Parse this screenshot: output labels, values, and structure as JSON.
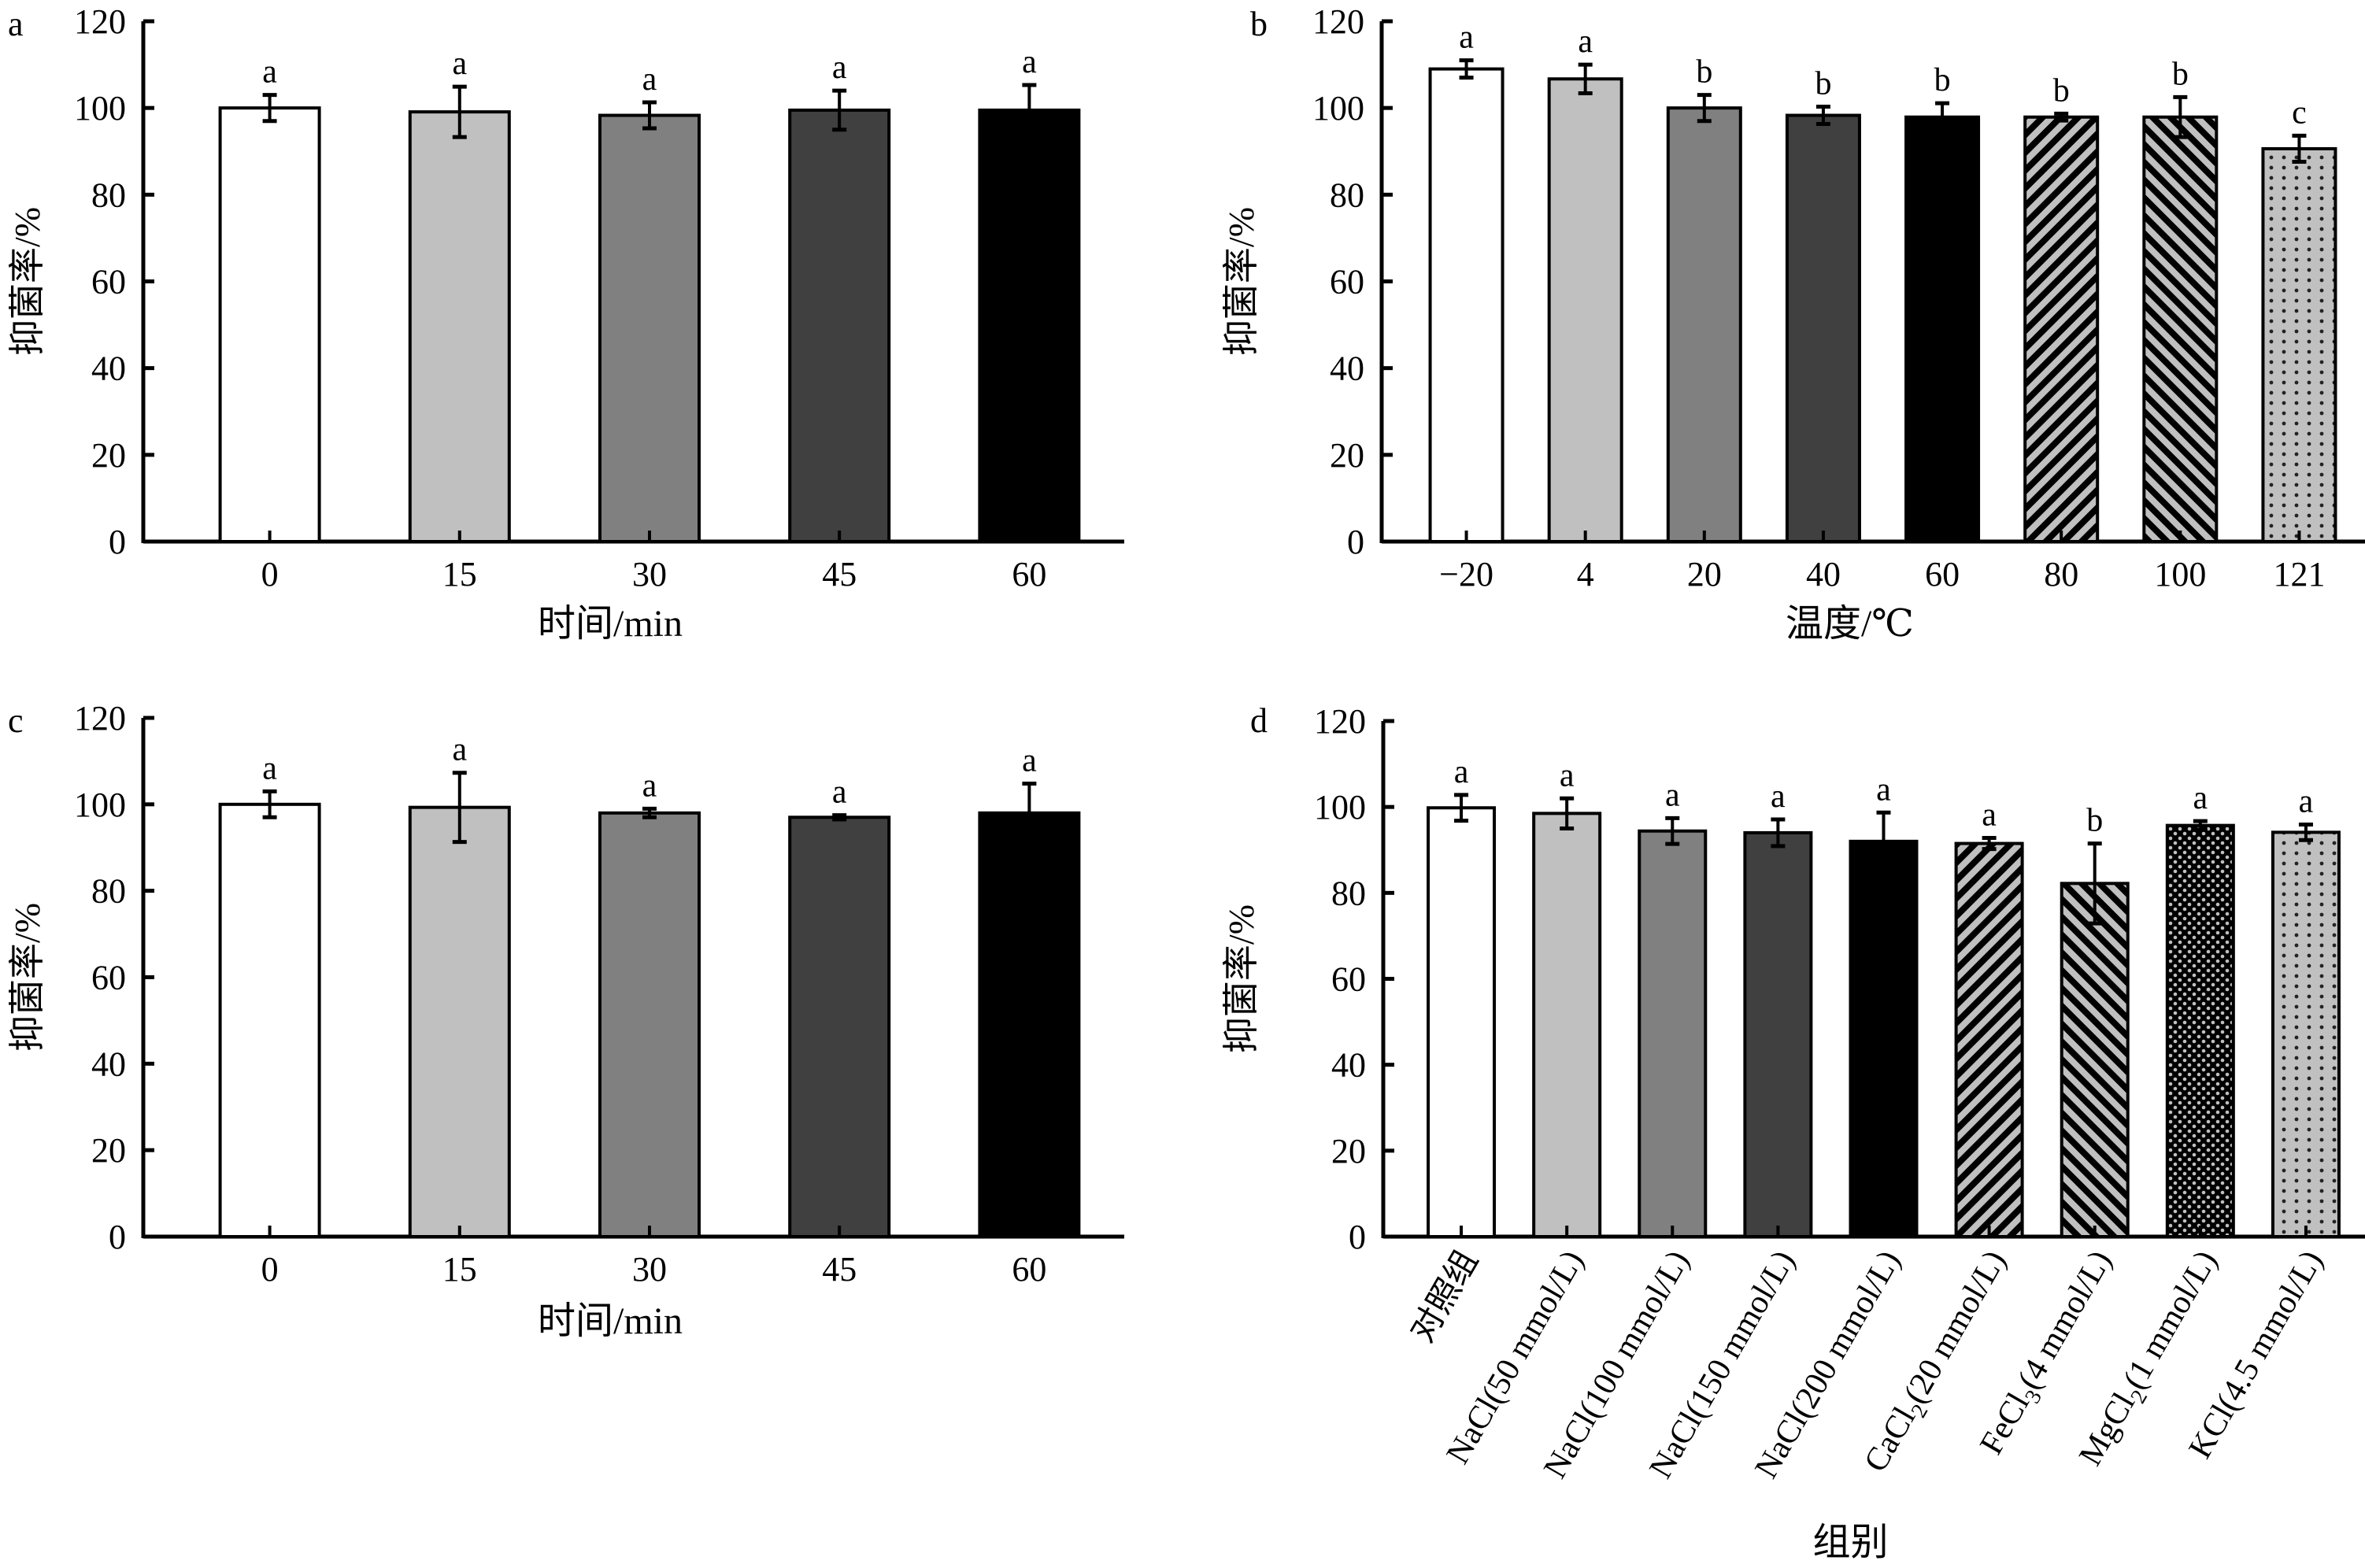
{
  "figure": {
    "y_axis_label": "抑菌率/%"
  },
  "chart_data": [
    {
      "id": "a",
      "panel_label": "a",
      "type": "bar",
      "title": "",
      "xlabel": "时间/min",
      "ylabel": "抑菌率/%",
      "ylim": [
        0,
        120
      ],
      "yticks": [
        0,
        20,
        40,
        60,
        80,
        100,
        120
      ],
      "grid": false,
      "legend": "none",
      "categories": [
        "0",
        "15",
        "30",
        "45",
        "60"
      ],
      "values": [
        100.0,
        99.1,
        98.3,
        99.5,
        99.5
      ],
      "errors": [
        3.0,
        5.8,
        3.0,
        4.5,
        5.8
      ],
      "significance": [
        "a",
        "a",
        "a",
        "a",
        "a"
      ],
      "fills": [
        "white",
        "lightgray",
        "gray",
        "darkgray",
        "black"
      ]
    },
    {
      "id": "b",
      "panel_label": "b",
      "type": "bar",
      "title": "",
      "xlabel": "温度/℃",
      "ylabel": "抑菌率/%",
      "ylim": [
        0,
        120
      ],
      "yticks": [
        0,
        20,
        40,
        60,
        80,
        100,
        120
      ],
      "grid": false,
      "legend": "none",
      "categories": [
        "−20",
        "4",
        "20",
        "40",
        "60",
        "80",
        "100",
        "121"
      ],
      "values": [
        109.0,
        106.7,
        100.0,
        98.3,
        97.9,
        97.9,
        97.9,
        90.6
      ],
      "errors": [
        2.0,
        3.3,
        3.0,
        2.0,
        3.2,
        0.8,
        4.6,
        3.0
      ],
      "significance": [
        "a",
        "a",
        "b",
        "b",
        "b",
        "b",
        "b",
        "c"
      ],
      "fills": [
        "white",
        "lightgray",
        "gray",
        "darkgray",
        "black",
        "hatch-up",
        "hatch-down",
        "dots"
      ]
    },
    {
      "id": "c",
      "panel_label": "c",
      "type": "bar",
      "title": "",
      "xlabel": "时间/min",
      "ylabel": "抑菌率/%",
      "ylim": [
        0,
        120
      ],
      "yticks": [
        0,
        20,
        40,
        60,
        80,
        100,
        120
      ],
      "grid": false,
      "legend": "none",
      "categories": [
        "0",
        "15",
        "30",
        "45",
        "60"
      ],
      "values": [
        100.0,
        99.3,
        98.0,
        97.0,
        98.0
      ],
      "errors": [
        3.0,
        8.0,
        1.0,
        0.5,
        6.8
      ],
      "significance": [
        "a",
        "a",
        "a",
        "a",
        "a"
      ],
      "fills": [
        "white",
        "lightgray",
        "gray",
        "darkgray",
        "black"
      ]
    },
    {
      "id": "d",
      "panel_label": "d",
      "type": "bar",
      "title": "",
      "xlabel": "组别",
      "ylabel": "抑菌率/%",
      "ylim": [
        0,
        120
      ],
      "yticks": [
        0,
        20,
        40,
        60,
        80,
        100,
        120
      ],
      "grid": false,
      "legend": "none",
      "categories": [
        {
          "main": "对照组",
          "sub": "",
          "rest": ""
        },
        {
          "main": "NaCl(50 mmol/L)",
          "sub": "",
          "rest": ""
        },
        {
          "main": "NaCl(100 mmol/L)",
          "sub": "",
          "rest": ""
        },
        {
          "main": "NaCl(150 mmol/L)",
          "sub": "",
          "rest": ""
        },
        {
          "main": "NaCl(200 mmol/L)",
          "sub": "",
          "rest": ""
        },
        {
          "main": "CaCl",
          "sub": "2",
          "rest": "(20 mmol/L)"
        },
        {
          "main": "FeCl",
          "sub": "3",
          "rest": "(4 mmol/L)"
        },
        {
          "main": "MgCl",
          "sub": "2",
          "rest": "(1 mmol/L)"
        },
        {
          "main": "KCl(4.5 mmol/L)",
          "sub": "",
          "rest": ""
        }
      ],
      "values": [
        99.8,
        98.5,
        94.4,
        94.0,
        92.0,
        91.5,
        82.2,
        95.7,
        94.1
      ],
      "errors": [
        3.0,
        3.5,
        3.0,
        3.1,
        6.7,
        1.3,
        9.3,
        1.0,
        1.8
      ],
      "significance": [
        "a",
        "a",
        "a",
        "a",
        "a",
        "a",
        "b",
        "a",
        "a"
      ],
      "fills": [
        "white",
        "lightgray",
        "gray",
        "darkgray",
        "black",
        "hatch-up",
        "hatch-down",
        "crosshatch",
        "dots"
      ]
    }
  ],
  "colors": {
    "white": "#ffffff",
    "lightgray": "#c0c0c0",
    "gray": "#808080",
    "darkgray": "#404040",
    "black": "#000000",
    "pattern_bg": "#c0c0c0",
    "axis": "#000000"
  }
}
